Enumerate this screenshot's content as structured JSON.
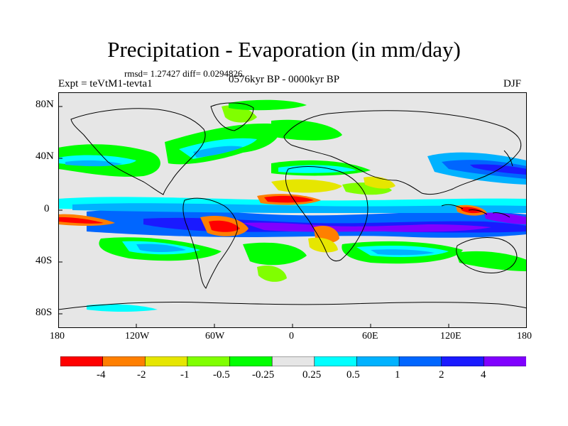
{
  "title": "Precipitation - Evaporation (in mm/day)",
  "stats": "rmsd= 1.27427  diff= 0.0294826",
  "experiment": "Expt = teVtM1-tevta1",
  "period": "0576kyr BP - 0000kyr BP",
  "season": "DJF",
  "y_axis_labels": [
    "80N",
    "40N",
    "0",
    "40S",
    "80S"
  ],
  "x_axis_labels": [
    "180",
    "120W",
    "60W",
    "0",
    "60E",
    "120E",
    "180"
  ],
  "colorbar": {
    "colors": [
      "#ff0000",
      "#ff7f00",
      "#e6e600",
      "#80ff00",
      "#00ff00",
      "#e6e6e6",
      "#00ffff",
      "#00b2ff",
      "#0066ff",
      "#1a1aff",
      "#8000ff"
    ],
    "labels": [
      "-4",
      "-2",
      "-1",
      "-0.5",
      "-0.25",
      "0.25",
      "0.5",
      "1",
      "2",
      "4"
    ]
  }
}
